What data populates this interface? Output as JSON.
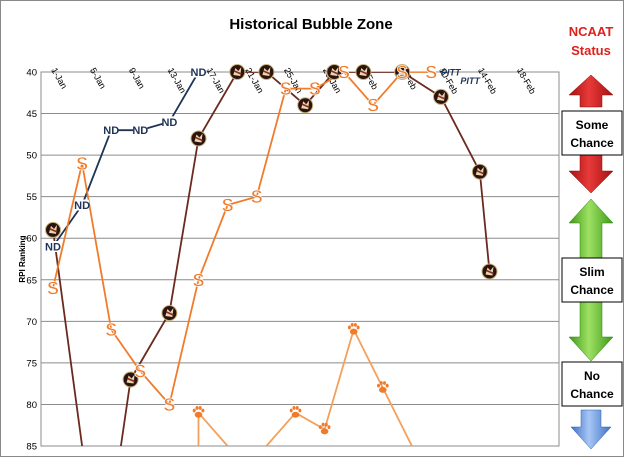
{
  "chart_data": {
    "type": "line",
    "title": "Historical Bubble Zone",
    "xlabel": "",
    "ylabel": "RPI Ranking",
    "y_reversed": true,
    "ylim": [
      40,
      85
    ],
    "ytick_labels": [
      "40",
      "45",
      "50",
      "55",
      "60",
      "65",
      "70",
      "75",
      "80",
      "85"
    ],
    "xtick_labels": [
      "1-Jan",
      "5-Jan",
      "9-Jan",
      "13-Jan",
      "17-Jan",
      "21-Jan",
      "25-Jan",
      "29-Jan",
      "2-Feb",
      "6-Feb",
      "10-Feb",
      "14-Feb",
      "18-Feb"
    ],
    "x_range_days": [
      0,
      49
    ],
    "grid": "horizontal",
    "series": [
      {
        "name": "",
        "team": "Florida State",
        "icon": "florida-state-logo",
        "color": "#6b2a1f",
        "points": [
          [
            0,
            59
          ],
          [
            3,
            85
          ],
          [
            null,
            null
          ],
          [
            7,
            85
          ],
          [
            8,
            77
          ],
          [
            12,
            69
          ],
          [
            15,
            48
          ],
          [
            19,
            40
          ],
          [
            22,
            40
          ],
          [
            26,
            44
          ],
          [
            29,
            40
          ],
          [
            32,
            40
          ],
          [
            36,
            40
          ],
          [
            40,
            43
          ],
          [
            44,
            52
          ],
          [
            45,
            64
          ]
        ]
      },
      {
        "name": "",
        "team": "Notre Dame",
        "icon": "notre-dame-logo",
        "color": "#1f3557",
        "points": [
          [
            0,
            61
          ],
          [
            3,
            56
          ],
          [
            6,
            47
          ],
          [
            9,
            47
          ],
          [
            12,
            46
          ],
          [
            15,
            40
          ]
        ]
      },
      {
        "name": "",
        "team": "Syracuse",
        "icon": "syracuse-logo",
        "color": "#f07c2b",
        "points": [
          [
            0,
            66
          ],
          [
            3,
            51
          ],
          [
            6,
            71
          ],
          [
            9,
            76
          ],
          [
            12,
            80
          ],
          [
            15,
            65
          ],
          [
            18,
            56
          ],
          [
            21,
            55
          ],
          [
            24,
            42
          ],
          [
            27,
            42
          ],
          [
            30,
            40
          ],
          [
            33,
            44
          ],
          [
            36,
            40
          ],
          [
            39,
            40
          ]
        ]
      },
      {
        "name": "",
        "team": "Clemson",
        "icon": "clemson-paw-logo",
        "color": "#f5a05a",
        "points": [
          [
            15,
            85
          ],
          [
            15,
            81
          ],
          [
            18,
            85
          ],
          [
            null,
            null
          ],
          [
            22,
            85
          ],
          [
            25,
            81
          ],
          [
            28,
            83
          ],
          [
            31,
            71
          ],
          [
            34,
            78
          ],
          [
            37,
            85
          ]
        ]
      },
      {
        "name": "",
        "team": "Pittsburgh",
        "icon": "pitt-logo",
        "color": "#1f3557",
        "points": [
          [
            41,
            40
          ],
          [
            43,
            41
          ]
        ]
      }
    ],
    "series_labels": {
      "pitt": "PITT"
    }
  },
  "status_panel": {
    "title_line1": "NCAAT",
    "title_line2": "Status",
    "some_line1": "Some",
    "some_line2": "Chance",
    "slim_line1": "Slim",
    "slim_line2": "Chance",
    "no_line1": "No",
    "no_line2": "Chance",
    "colors": {
      "title": "#e0201b",
      "some": "#d01a1a",
      "slim": "#58c326",
      "no": "#5b8fd8"
    }
  }
}
